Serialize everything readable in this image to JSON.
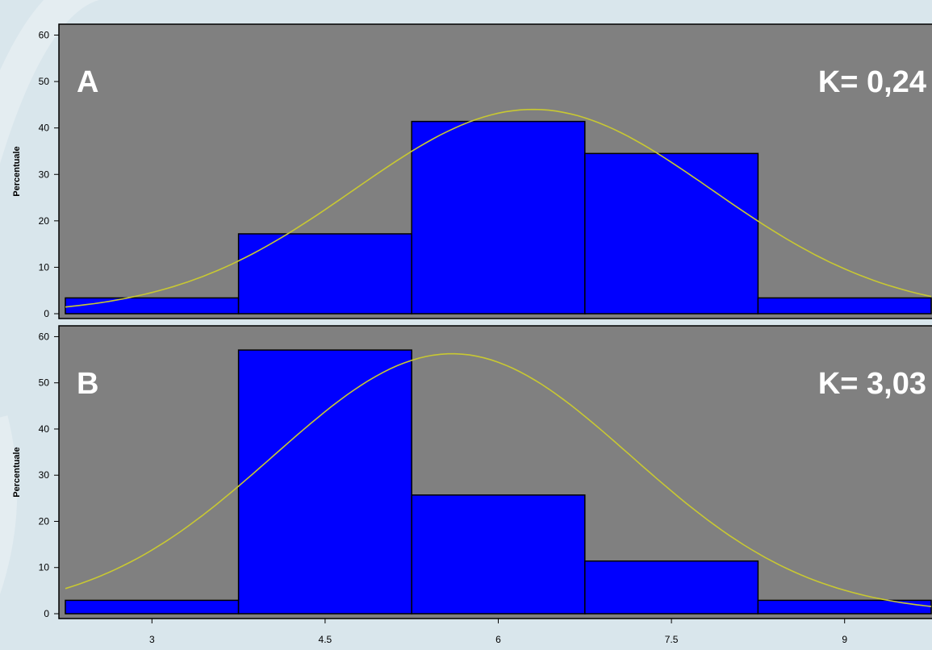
{
  "chart_data": [
    {
      "type": "bar",
      "panel_label": "A",
      "annotation": "K= 0,24",
      "ylabel": "Percentuale",
      "xlabel": "",
      "ylim": [
        0,
        62
      ],
      "yticks": [
        0,
        10,
        20,
        30,
        40,
        50,
        60
      ],
      "xlim": [
        2.25,
        9.75
      ],
      "xticks": [
        "3",
        "4.5",
        "6",
        "7.5",
        "9"
      ],
      "bin_edges": [
        2.25,
        3.75,
        5.25,
        6.75,
        8.25,
        9.75
      ],
      "values": [
        3.4,
        17.2,
        41.4,
        34.5,
        3.4
      ],
      "fit_curve": {
        "type": "normal",
        "mean": 6.3,
        "peak": 44
      },
      "bar_color": "#0000ff",
      "plot_background": "#808080",
      "curve_color": "#c8c832"
    },
    {
      "type": "bar",
      "panel_label": "B",
      "annotation": "K= 3,03",
      "ylabel": "Percentuale",
      "xlabel": "",
      "ylim": [
        0,
        62
      ],
      "yticks": [
        0,
        10,
        20,
        30,
        40,
        50,
        60
      ],
      "xlim": [
        2.25,
        9.75
      ],
      "xticks": [
        "3",
        "4.5",
        "6",
        "7.5",
        "9"
      ],
      "bin_edges": [
        2.25,
        3.75,
        5.25,
        6.75,
        8.25,
        9.75
      ],
      "values": [
        2.9,
        57.1,
        25.7,
        11.4,
        2.9
      ],
      "fit_curve": {
        "type": "normal",
        "mean": 5.6,
        "peak": 56.3
      },
      "bar_color": "#0000ff",
      "plot_background": "#808080",
      "curve_color": "#c8c832"
    }
  ]
}
